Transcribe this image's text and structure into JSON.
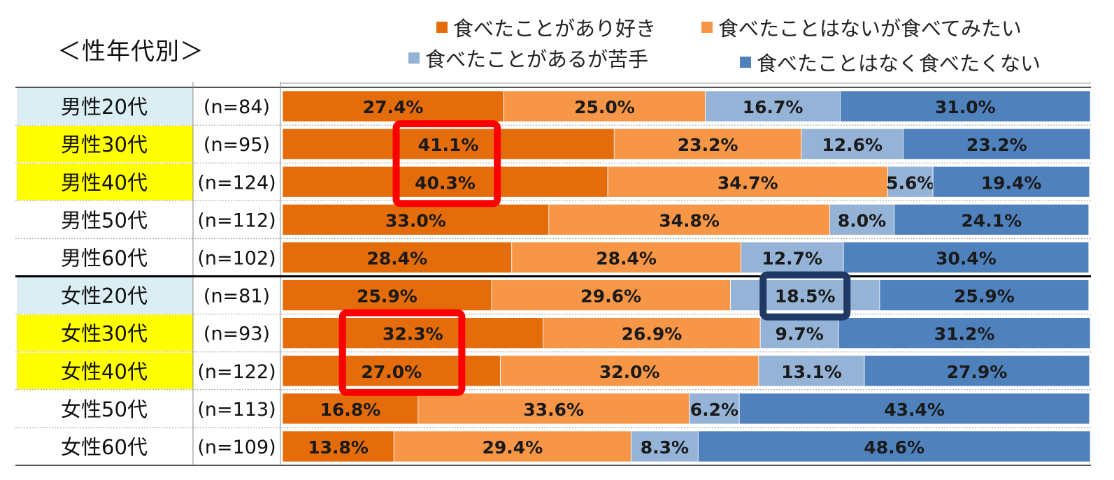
{
  "chart_data": {
    "type": "bar",
    "orientation": "horizontal",
    "stacked": true,
    "normalized": true,
    "title": "＜性年代別＞",
    "series": [
      {
        "name": "食べたことがあり好き",
        "color": "#E46C0A",
        "values": [
          27.4,
          41.1,
          40.3,
          33.0,
          28.4,
          25.9,
          32.3,
          27.0,
          16.8,
          13.8
        ]
      },
      {
        "name": "食べたことはないが食べてみたい",
        "color": "#F79646",
        "values": [
          25.0,
          23.2,
          34.7,
          34.8,
          28.4,
          29.6,
          26.9,
          32.0,
          33.6,
          29.4
        ]
      },
      {
        "name": "食べたことがあるが苦手",
        "color": "#95B3D7",
        "values": [
          16.7,
          12.6,
          5.6,
          8.0,
          12.7,
          18.5,
          9.7,
          13.1,
          6.2,
          8.3
        ]
      },
      {
        "name": "食べたことはなく食べたくない",
        "color": "#4F81BD",
        "values": [
          31.0,
          23.2,
          19.4,
          24.1,
          30.4,
          25.9,
          31.2,
          27.9,
          43.4,
          48.6
        ]
      }
    ],
    "rows": [
      {
        "label": "男性20代",
        "n": "(n=84)",
        "label_bg": "#DAEEF3"
      },
      {
        "label": "男性30代",
        "n": "(n=95)",
        "label_bg": "#FFFF00"
      },
      {
        "label": "男性40代",
        "n": "(n=124)",
        "label_bg": "#FFFF00"
      },
      {
        "label": "男性50代",
        "n": "(n=112)",
        "label_bg": "#FFFFFF"
      },
      {
        "label": "男性60代",
        "n": "(n=102)",
        "label_bg": "#FFFFFF"
      },
      {
        "label": "女性20代",
        "n": "(n=81)",
        "label_bg": "#DAEEF3"
      },
      {
        "label": "女性30代",
        "n": "(n=93)",
        "label_bg": "#FFFF00"
      },
      {
        "label": "女性40代",
        "n": "(n=122)",
        "label_bg": "#FFFF00"
      },
      {
        "label": "女性50代",
        "n": "(n=113)",
        "label_bg": "#FFFFFF"
      },
      {
        "label": "女性60代",
        "n": "(n=109)",
        "label_bg": "#FFFFFF"
      }
    ],
    "value_suffix": "%",
    "xlim": [
      0,
      100
    ],
    "highlights": [
      {
        "rows": [
          "男性30代",
          "男性40代"
        ],
        "series": "食べたことがあり好き",
        "color": "#FF0000"
      },
      {
        "rows": [
          "女性30代",
          "女性40代"
        ],
        "series": "食べたことがあり好き",
        "color": "#FF0000"
      },
      {
        "rows": [
          "女性20代"
        ],
        "series": "食べたことがあるが苦手",
        "color": "#1F3864"
      }
    ]
  }
}
